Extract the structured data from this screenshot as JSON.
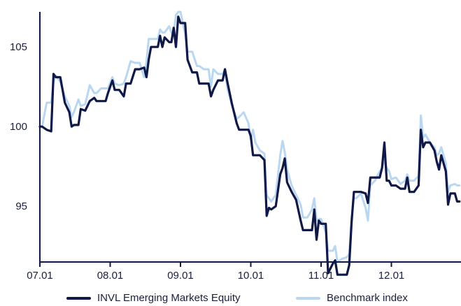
{
  "chart_data": {
    "type": "line",
    "title": "",
    "xlabel": "",
    "ylabel": "",
    "x_ticks": [
      "07.01",
      "08.01",
      "09.01",
      "10.01",
      "11.01",
      "12.01"
    ],
    "xlim": [
      "07.01",
      "12.31"
    ],
    "y_ticks": [
      95,
      100,
      105
    ],
    "ylim": [
      91.5,
      107.2
    ],
    "grid": false,
    "legend_position": "bottom",
    "series": [
      {
        "name": "INVL Emerging Markets Equity",
        "color": "#0f1847",
        "points": [
          [
            "07.01",
            100.0
          ],
          [
            "07.02",
            100.0
          ],
          [
            "07.04",
            99.8
          ],
          [
            "07.06",
            99.7
          ],
          [
            "07.07",
            103.3
          ],
          [
            "07.08",
            103.1
          ],
          [
            "07.10",
            103.1
          ],
          [
            "07.12",
            101.5
          ],
          [
            "07.14",
            100.9
          ],
          [
            "07.15",
            100.0
          ],
          [
            "07.16",
            100.1
          ],
          [
            "07.18",
            100.1
          ],
          [
            "07.19",
            101.1
          ],
          [
            "07.21",
            101.0
          ],
          [
            "07.23",
            101.6
          ],
          [
            "07.25",
            101.8
          ],
          [
            "07.26",
            101.6
          ],
          [
            "07.28",
            101.6
          ],
          [
            "07.30",
            101.6
          ],
          [
            "07.31",
            102.1
          ],
          [
            "08.02",
            102.9
          ],
          [
            "08.03",
            102.3
          ],
          [
            "08.05",
            102.3
          ],
          [
            "08.07",
            101.9
          ],
          [
            "08.08",
            102.7
          ],
          [
            "08.10",
            102.7
          ],
          [
            "08.12",
            103.6
          ],
          [
            "08.14",
            103.6
          ],
          [
            "08.16",
            103.7
          ],
          [
            "08.17",
            103.1
          ],
          [
            "08.18",
            104.2
          ],
          [
            "08.19",
            105.0
          ],
          [
            "08.22",
            105.0
          ],
          [
            "08.23",
            105.7
          ],
          [
            "08.24",
            105.0
          ],
          [
            "08.25",
            105.6
          ],
          [
            "08.27",
            105.3
          ],
          [
            "08.28",
            105.3
          ],
          [
            "08.29",
            106.2
          ],
          [
            "08.30",
            105.0
          ],
          [
            "08.31",
            106.9
          ],
          [
            "09.01",
            106.5
          ],
          [
            "09.03",
            106.5
          ],
          [
            "09.04",
            104.2
          ],
          [
            "09.06",
            103.4
          ],
          [
            "09.08",
            103.4
          ],
          [
            "09.09",
            102.7
          ],
          [
            "09.11",
            102.7
          ],
          [
            "09.13",
            102.7
          ],
          [
            "09.14",
            101.9
          ],
          [
            "09.15",
            102.3
          ],
          [
            "09.17",
            102.9
          ],
          [
            "09.19",
            102.9
          ],
          [
            "09.20",
            103.6
          ],
          [
            "09.21",
            102.8
          ],
          [
            "09.23",
            101.4
          ],
          [
            "09.25",
            100.2
          ],
          [
            "09.26",
            99.8
          ],
          [
            "09.28",
            99.8
          ],
          [
            "09.30",
            99.8
          ],
          [
            "10.01",
            99.4
          ],
          [
            "10.02",
            98.2
          ],
          [
            "10.03",
            98.2
          ],
          [
            "10.05",
            98.2
          ],
          [
            "10.07",
            97.9
          ],
          [
            "10.08",
            94.4
          ],
          [
            "10.09",
            94.9
          ],
          [
            "10.10",
            94.8
          ],
          [
            "10.12",
            95.0
          ],
          [
            "10.14",
            97.0
          ],
          [
            "10.15",
            97.4
          ],
          [
            "10.16",
            98.0
          ],
          [
            "10.17",
            96.5
          ],
          [
            "10.19",
            95.9
          ],
          [
            "10.21",
            95.4
          ],
          [
            "10.23",
            94.1
          ],
          [
            "10.24",
            93.5
          ],
          [
            "10.26",
            93.5
          ],
          [
            "10.28",
            93.5
          ],
          [
            "10.29",
            94.8
          ],
          [
            "10.30",
            92.9
          ],
          [
            "10.31",
            94.1
          ],
          [
            "11.01",
            93.9
          ],
          [
            "11.03",
            93.9
          ],
          [
            "11.04",
            90.8
          ],
          [
            "11.06",
            91.4
          ],
          [
            "11.07",
            91.6
          ],
          [
            "11.08",
            90.7
          ],
          [
            "11.10",
            90.7
          ],
          [
            "11.12",
            90.7
          ],
          [
            "11.13",
            91.3
          ],
          [
            "11.14",
            94.0
          ],
          [
            "11.15",
            95.9
          ],
          [
            "11.16",
            95.9
          ],
          [
            "11.18",
            95.9
          ],
          [
            "11.20",
            95.8
          ],
          [
            "11.21",
            95.2
          ],
          [
            "11.22",
            96.8
          ],
          [
            "11.24",
            96.8
          ],
          [
            "11.26",
            96.8
          ],
          [
            "11.27",
            97.4
          ],
          [
            "11.28",
            99.0
          ],
          [
            "11.29",
            96.6
          ],
          [
            "11.30",
            96.6
          ],
          [
            "12.01",
            96.3
          ],
          [
            "12.03",
            96.3
          ],
          [
            "12.05",
            96.1
          ],
          [
            "12.07",
            96.1
          ],
          [
            "12.08",
            96.8
          ],
          [
            "12.09",
            95.9
          ],
          [
            "12.11",
            95.9
          ],
          [
            "12.13",
            96.3
          ],
          [
            "12.14",
            99.8
          ],
          [
            "12.15",
            98.7
          ],
          [
            "12.16",
            99.0
          ],
          [
            "12.18",
            99.0
          ],
          [
            "12.20",
            98.5
          ],
          [
            "12.21",
            97.8
          ],
          [
            "12.22",
            97.3
          ],
          [
            "12.23",
            98.2
          ],
          [
            "12.25",
            97.2
          ],
          [
            "12.26",
            95.1
          ],
          [
            "12.27",
            95.8
          ],
          [
            "12.29",
            95.8
          ],
          [
            "12.30",
            95.3
          ],
          [
            "12.31",
            95.3
          ]
        ]
      },
      {
        "name": "Benchmark index",
        "color": "#b9d7f1",
        "points": [
          [
            "07.01",
            100.0
          ],
          [
            "07.02",
            100.0
          ],
          [
            "07.04",
            101.5
          ],
          [
            "07.06",
            101.5
          ],
          [
            "07.07",
            102.8
          ],
          [
            "07.08",
            103.2
          ],
          [
            "07.10",
            102.8
          ],
          [
            "07.12",
            101.9
          ],
          [
            "07.14",
            101.3
          ],
          [
            "07.15",
            100.6
          ],
          [
            "07.16",
            100.9
          ],
          [
            "07.18",
            101.7
          ],
          [
            "07.19",
            101.3
          ],
          [
            "07.21",
            101.4
          ],
          [
            "07.23",
            102.6
          ],
          [
            "07.25",
            102.1
          ],
          [
            "07.26",
            102.1
          ],
          [
            "07.28",
            102.4
          ],
          [
            "07.30",
            102.4
          ],
          [
            "07.31",
            102.4
          ],
          [
            "08.02",
            103.1
          ],
          [
            "08.03",
            102.7
          ],
          [
            "08.05",
            102.6
          ],
          [
            "08.07",
            102.7
          ],
          [
            "08.08",
            103.1
          ],
          [
            "08.10",
            104.1
          ],
          [
            "08.12",
            104.0
          ],
          [
            "08.14",
            104.0
          ],
          [
            "08.16",
            103.1
          ],
          [
            "08.17",
            104.1
          ],
          [
            "08.18",
            105.5
          ],
          [
            "08.19",
            105.5
          ],
          [
            "08.22",
            105.5
          ],
          [
            "08.23",
            106.1
          ],
          [
            "08.24",
            105.9
          ],
          [
            "08.25",
            105.9
          ],
          [
            "08.27",
            106.3
          ],
          [
            "08.28",
            105.9
          ],
          [
            "08.29",
            105.9
          ],
          [
            "08.30",
            107.0
          ],
          [
            "08.31",
            107.2
          ],
          [
            "09.01",
            107.2
          ],
          [
            "09.03",
            105.8
          ],
          [
            "09.04",
            104.7
          ],
          [
            "09.06",
            104.7
          ],
          [
            "09.08",
            103.8
          ],
          [
            "09.09",
            103.8
          ],
          [
            "09.11",
            103.6
          ],
          [
            "09.13",
            103.6
          ],
          [
            "09.14",
            102.5
          ],
          [
            "09.15",
            103.6
          ],
          [
            "09.17",
            103.3
          ],
          [
            "09.19",
            103.3
          ],
          [
            "09.20",
            103.6
          ],
          [
            "09.21",
            102.4
          ],
          [
            "09.23",
            101.3
          ],
          [
            "09.25",
            100.5
          ],
          [
            "09.26",
            100.6
          ],
          [
            "09.28",
            100.9
          ],
          [
            "09.30",
            100.2
          ],
          [
            "10.01",
            99.2
          ],
          [
            "10.02",
            99.8
          ],
          [
            "10.03",
            99.0
          ],
          [
            "10.05",
            98.5
          ],
          [
            "10.07",
            98.3
          ],
          [
            "10.08",
            95.7
          ],
          [
            "10.09",
            95.5
          ],
          [
            "10.10",
            95.3
          ],
          [
            "10.12",
            95.7
          ],
          [
            "10.14",
            98.2
          ],
          [
            "10.15",
            99.1
          ],
          [
            "10.16",
            98.4
          ],
          [
            "10.17",
            97.3
          ],
          [
            "10.19",
            96.3
          ],
          [
            "10.21",
            95.7
          ],
          [
            "10.23",
            95.1
          ],
          [
            "10.24",
            94.3
          ],
          [
            "10.26",
            94.3
          ],
          [
            "10.28",
            94.8
          ],
          [
            "10.29",
            95.5
          ],
          [
            "10.30",
            94.1
          ],
          [
            "10.31",
            94.2
          ],
          [
            "11.01",
            94.2
          ],
          [
            "11.03",
            93.4
          ],
          [
            "11.04",
            92.2
          ],
          [
            "11.06",
            92.2
          ],
          [
            "11.07",
            92.5
          ],
          [
            "11.08",
            91.5
          ],
          [
            "11.10",
            91.7
          ],
          [
            "11.12",
            91.8
          ],
          [
            "11.13",
            92.0
          ],
          [
            "11.14",
            94.3
          ],
          [
            "11.15",
            95.5
          ],
          [
            "11.16",
            95.5
          ],
          [
            "11.18",
            95.8
          ],
          [
            "11.20",
            94.9
          ],
          [
            "11.21",
            94.1
          ],
          [
            "11.22",
            96.3
          ],
          [
            "11.24",
            96.6
          ],
          [
            "11.26",
            97.2
          ],
          [
            "11.27",
            97.4
          ],
          [
            "11.28",
            97.9
          ],
          [
            "11.29",
            97.4
          ],
          [
            "11.30",
            97.2
          ],
          [
            "12.01",
            96.7
          ],
          [
            "12.03",
            96.8
          ],
          [
            "12.05",
            96.4
          ],
          [
            "12.07",
            96.6
          ],
          [
            "12.08",
            97.0
          ],
          [
            "12.09",
            96.6
          ],
          [
            "12.11",
            96.6
          ],
          [
            "12.13",
            96.9
          ],
          [
            "12.14",
            100.7
          ],
          [
            "12.15",
            99.3
          ],
          [
            "12.16",
            99.5
          ],
          [
            "12.18",
            99.0
          ],
          [
            "12.20",
            98.7
          ],
          [
            "12.21",
            98.2
          ],
          [
            "12.22",
            98.3
          ],
          [
            "12.23",
            98.7
          ],
          [
            "12.25",
            97.7
          ],
          [
            "12.26",
            95.9
          ],
          [
            "12.27",
            96.3
          ],
          [
            "12.29",
            96.4
          ],
          [
            "12.30",
            96.3
          ],
          [
            "12.31",
            96.3
          ]
        ]
      }
    ]
  }
}
